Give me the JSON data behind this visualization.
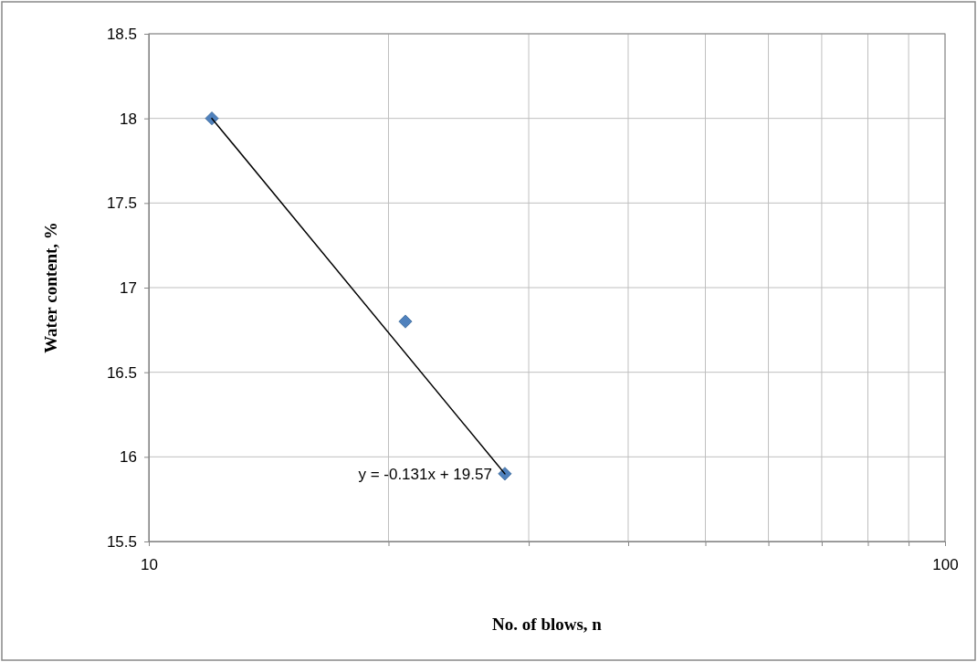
{
  "chart_data": {
    "type": "scatter",
    "xlabel": "No. of blows, n",
    "ylabel": "Water content, %",
    "log": "x",
    "xlim": [
      10,
      100
    ],
    "xticks": [
      10,
      {
        "value": 20,
        "label": null
      },
      {
        "value": 30,
        "label": null
      },
      {
        "value": 40,
        "label": null
      },
      {
        "value": 50,
        "label": null
      },
      {
        "value": 60,
        "label": null
      },
      {
        "value": 70,
        "label": null
      },
      {
        "value": 80,
        "label": null
      },
      {
        "value": 90,
        "label": null
      },
      100
    ],
    "ylim": [
      15.5,
      18.5
    ],
    "yticks": [
      15.5,
      16,
      16.5,
      17,
      17.5,
      18,
      18.5
    ],
    "grid": true,
    "series": [
      {
        "x": [
          12,
          21,
          28
        ],
        "values": [
          18,
          16.8,
          15.9
        ],
        "color": "#4f81bd",
        "marker": "diamond"
      },
      {
        "type": "line",
        "x": [
          12,
          28
        ],
        "values": [
          18.0,
          15.9
        ],
        "color": "#000000",
        "line_style": "solid",
        "marker": "none"
      }
    ],
    "annotations": [
      {
        "text": "y = -0.131x + 19.57",
        "x": 28,
        "y": 15.9
      }
    ]
  }
}
